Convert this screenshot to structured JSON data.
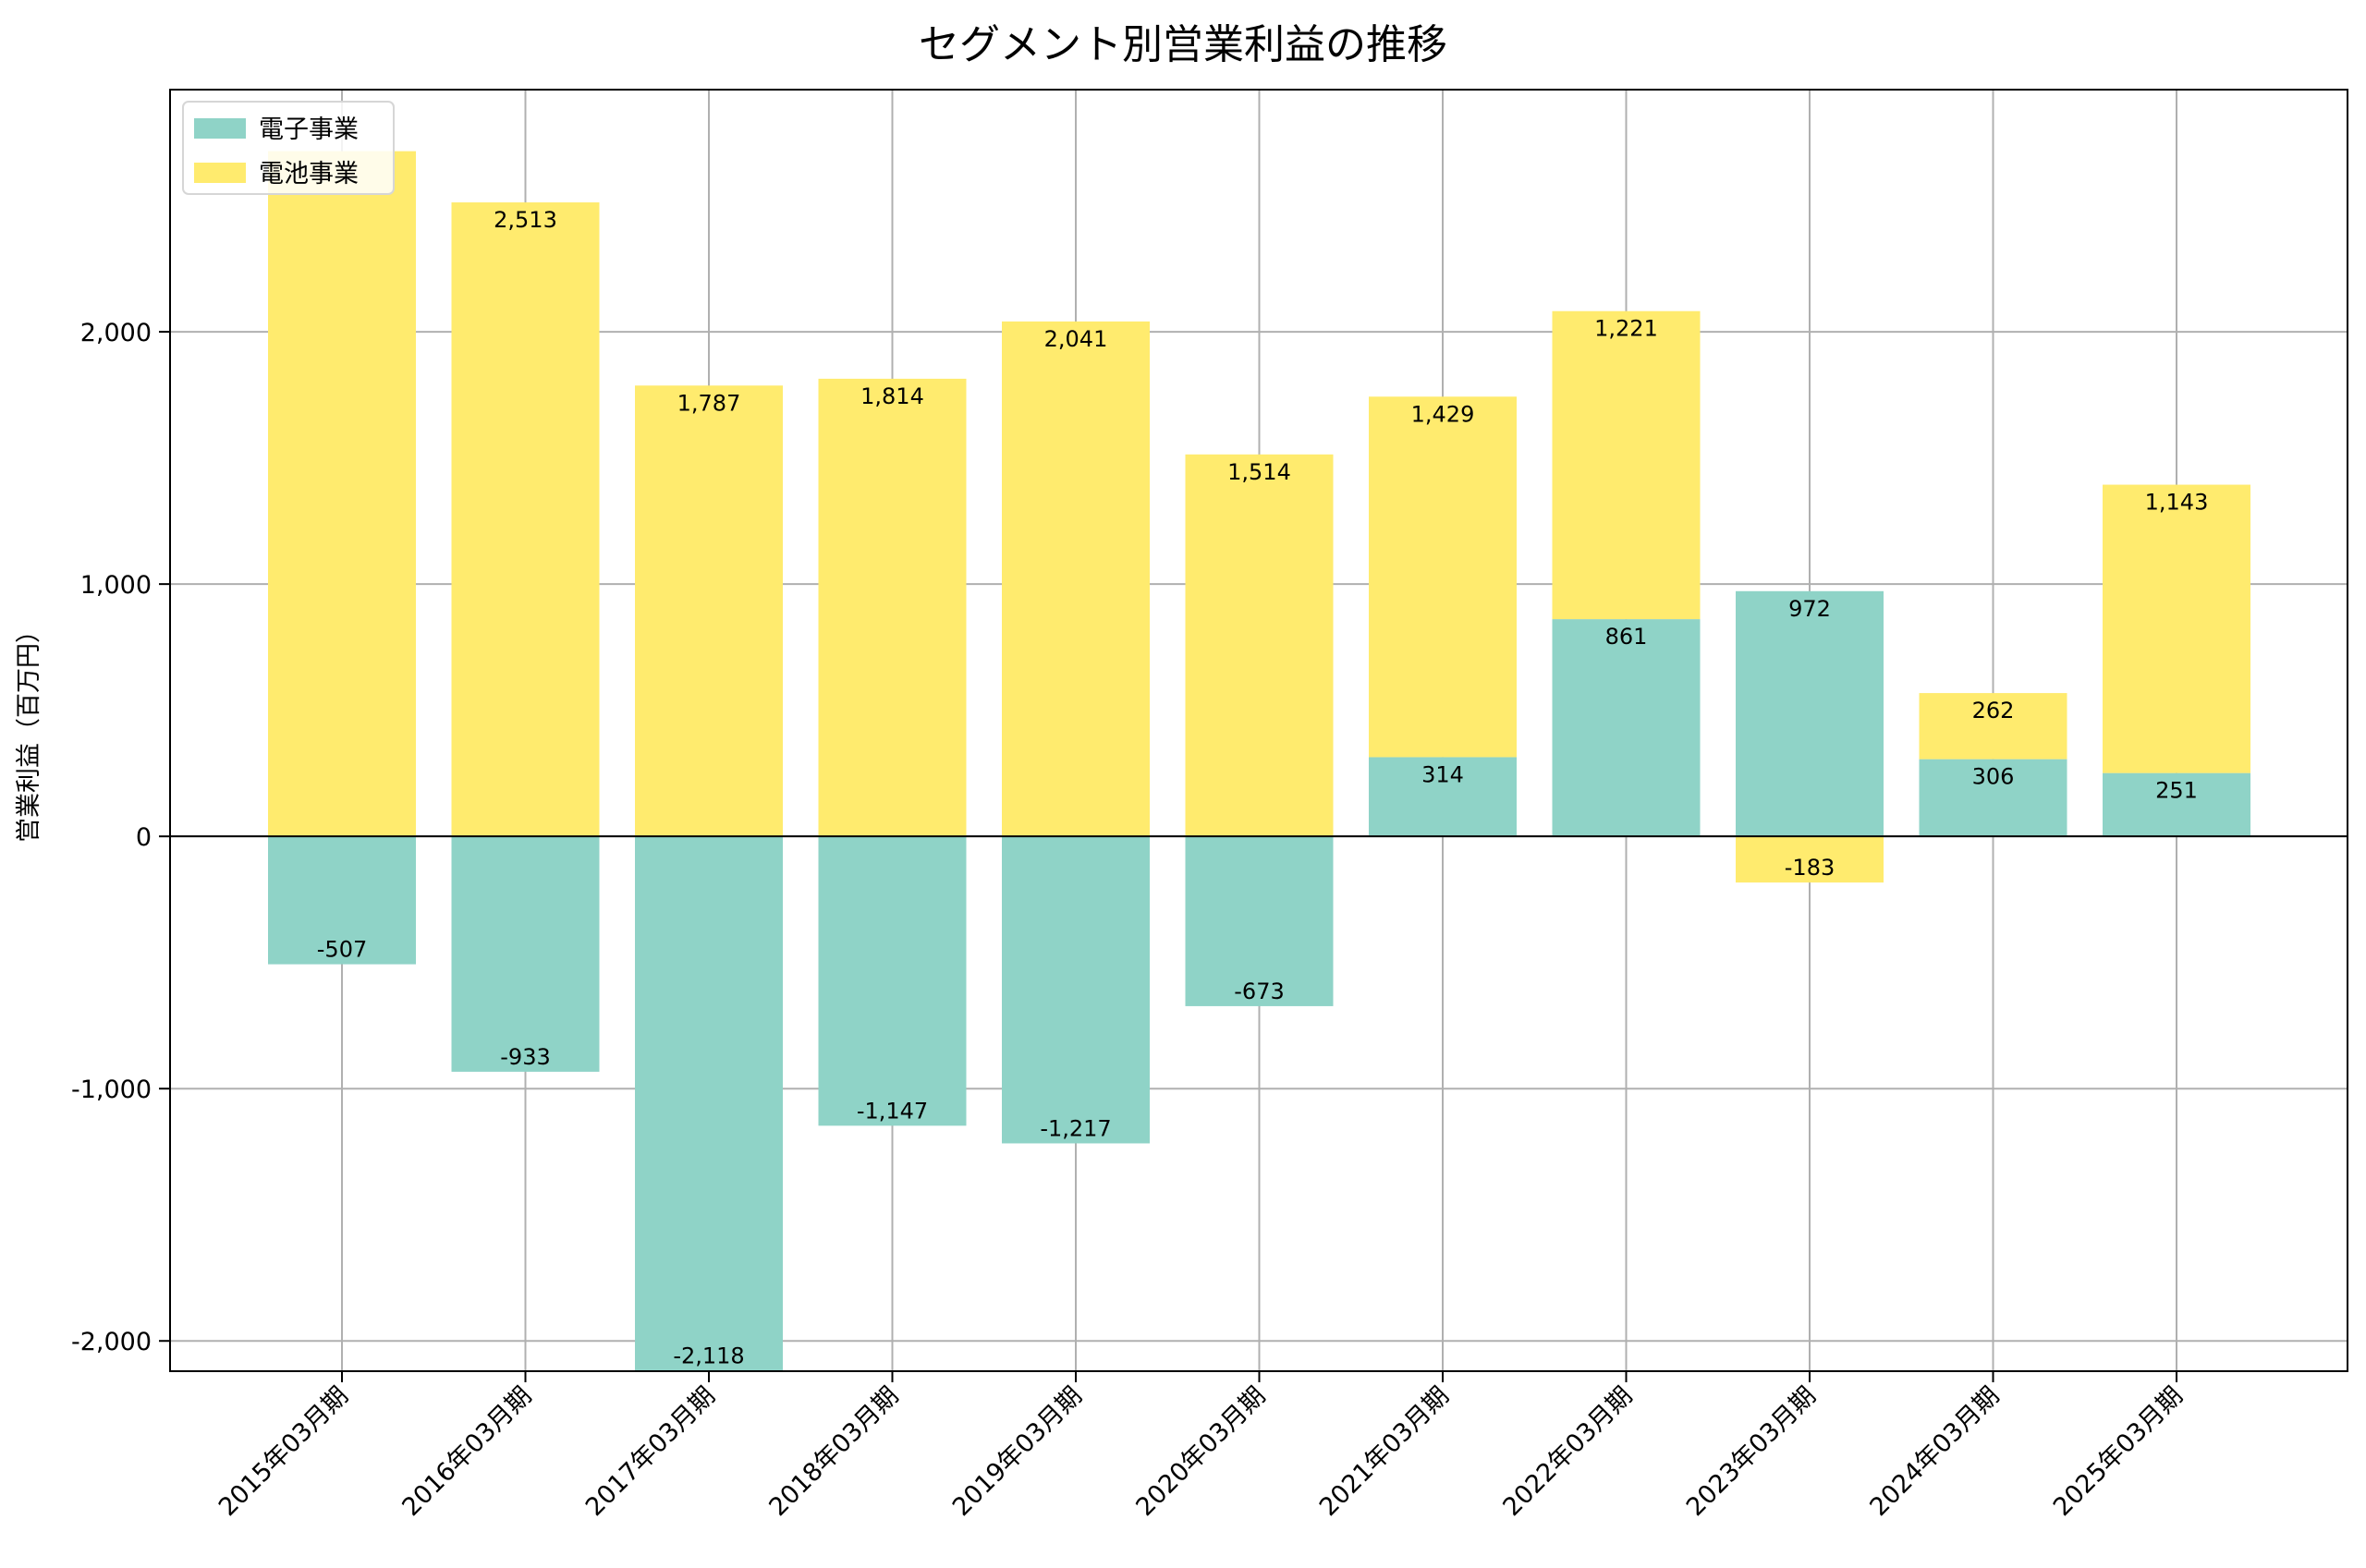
{
  "chart_data": {
    "type": "bar",
    "stacked": true,
    "title": "セグメント別営業利益の推移",
    "xlabel": "",
    "ylabel": "営業利益（百万円）",
    "ylim": [
      -2120,
      2960
    ],
    "yticks": [
      -2000,
      -1000,
      0,
      1000,
      2000
    ],
    "ytick_labels": [
      "-2,000",
      "-1,000",
      "0",
      "1,000",
      "2,000"
    ],
    "grid": true,
    "legend_position": "top-left",
    "categories": [
      "2015年03月期",
      "2016年03月期",
      "2017年03月期",
      "2018年03月期",
      "2019年03月期",
      "2020年03月期",
      "2021年03月期",
      "2022年03月期",
      "2023年03月期",
      "2024年03月期",
      "2025年03月期"
    ],
    "series": [
      {
        "name": "電子事業",
        "color": "#8fd3c7",
        "values": [
          -507,
          -933,
          -2118,
          -1147,
          -1217,
          -673,
          314,
          861,
          972,
          306,
          251
        ],
        "labels": [
          "-507",
          "-933",
          "-2,118",
          "-1,147",
          "-1,217",
          "-673",
          "314",
          "861",
          "972",
          "306",
          "251"
        ]
      },
      {
        "name": "電池事業",
        "color": "#ffeb6e",
        "values": [
          2716,
          2513,
          1787,
          1814,
          2041,
          1514,
          1429,
          1221,
          -183,
          262,
          1143
        ],
        "labels": [
          "",
          "2,513",
          "1,787",
          "1,814",
          "2,041",
          "1,514",
          "1,429",
          "1,221",
          "-183",
          "262",
          "1,143"
        ]
      }
    ]
  }
}
